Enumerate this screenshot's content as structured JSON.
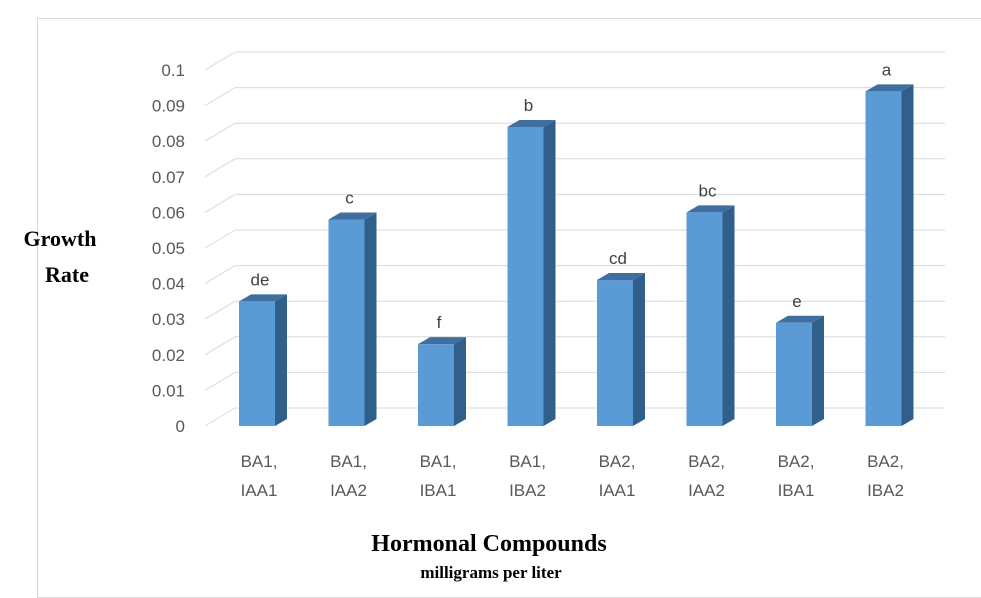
{
  "chart_data": {
    "type": "bar",
    "categories": [
      [
        "BA1,",
        "IAA1"
      ],
      [
        "BA1,",
        "IAA2"
      ],
      [
        "BA1,",
        "IBA1"
      ],
      [
        "BA1,",
        "IBA2"
      ],
      [
        "BA2,",
        "IAA1"
      ],
      [
        "BA2,",
        "IAA2"
      ],
      [
        "BA2,",
        "IBA1"
      ],
      [
        "BA2,",
        "IBA2"
      ]
    ],
    "values": [
      0.035,
      0.058,
      0.023,
      0.084,
      0.041,
      0.06,
      0.029,
      0.094
    ],
    "data_labels": [
      "de",
      "c",
      "f",
      "b",
      "cd",
      "bc",
      "e",
      "a"
    ],
    "ylabel_lines": [
      "Growth",
      "Rate"
    ],
    "xlabel": "Hormonal Compounds",
    "xlabel_sub": "milligrams per liter",
    "ylim": [
      0,
      0.1
    ],
    "yticks": [
      "0",
      "0.01",
      "0.02",
      "0.03",
      "0.04",
      "0.05",
      "0.06",
      "0.07",
      "0.08",
      "0.09",
      "0.1"
    ],
    "grid": true,
    "legend": "none",
    "colors": {
      "front": "#5b9bd5",
      "side": "#2f5f8a",
      "top": "#3e6f9f",
      "grid": "#d9d9d9"
    }
  }
}
